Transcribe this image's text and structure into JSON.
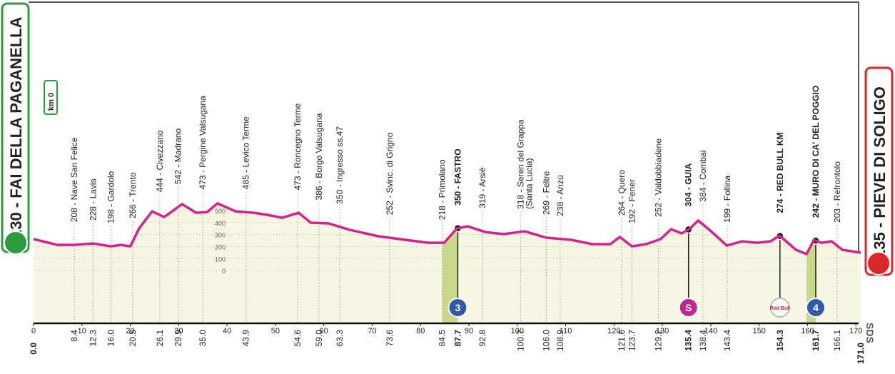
{
  "start": {
    "label": "230 - FAI DELLA PAGANELLA"
  },
  "finish": {
    "label": "135 - PIEVE DI SOLIGO"
  },
  "km_zero": "km 0",
  "logo": "SDS",
  "chart_data": {
    "type": "area",
    "color": "#d4248c",
    "fill": "#f6f7e2",
    "climb_color": "#c9d98c",
    "x": [
      0,
      4.9,
      8.4,
      12.3,
      16,
      18,
      20,
      21.8,
      24.5,
      27,
      30.7,
      33.6,
      35.9,
      38,
      41.8,
      45.5,
      48.4,
      51.4,
      54.8,
      57.3,
      61,
      65.4,
      71.3,
      75.7,
      81.6,
      84.9,
      87.5,
      89.7,
      93.4,
      97.1,
      101.5,
      106,
      111.1,
      115.6,
      119.2,
      121.2,
      123.7,
      126.6,
      129.6,
      131.8,
      134,
      135.5,
      137.4,
      139.9,
      143.3,
      146.5,
      149.5,
      152.4,
      154.2,
      157.6,
      159.8,
      161.3,
      162.8,
      165,
      167.2,
      171
    ],
    "values": [
      262,
      214,
      214,
      226,
      202,
      214,
      202,
      351,
      494,
      446,
      554,
      482,
      488,
      560,
      494,
      482,
      464,
      440,
      482,
      399,
      393,
      339,
      286,
      262,
      232,
      232,
      351,
      369,
      321,
      304,
      327,
      274,
      256,
      220,
      220,
      280,
      202,
      220,
      262,
      345,
      310,
      345,
      417,
      333,
      208,
      244,
      232,
      244,
      292,
      173,
      137,
      256,
      232,
      244,
      173,
      149
    ],
    "xlim": [
      0,
      171
    ],
    "xticks": [
      0,
      10,
      20,
      30,
      40,
      50,
      60,
      70,
      80,
      90,
      100,
      110,
      120,
      130,
      140,
      150,
      160,
      170
    ],
    "ylim": [
      -440,
      2000
    ],
    "yticks": [
      0,
      100,
      200,
      300,
      400,
      500
    ],
    "distance_start": {
      "value": 0,
      "label": "0.0"
    },
    "distance_finish": {
      "value": 171,
      "label": "171.0"
    },
    "climbs": [
      {
        "from": 84.5,
        "to": 87.7
      },
      {
        "from": 159.8,
        "to": 161.7
      }
    ],
    "waypoints": [
      {
        "km": 8.4,
        "label": "208 - Nave San Felice"
      },
      {
        "km": 12.3,
        "label": "228 - Lavis"
      },
      {
        "km": {
          "value": 16,
          "label": "16.0"
        },
        "label": "198 - Gardolo"
      },
      {
        "km": 20.5,
        "label": "266 - Trento"
      },
      {
        "km": 26.1,
        "label": "444 - Civezzano"
      },
      {
        "km": 29.9,
        "label": "542 - Madrano"
      },
      {
        "km": {
          "value": 35,
          "label": "35.0"
        },
        "label": "473 - Pergine Valsugana"
      },
      {
        "km": 43.9,
        "label": "485 - Levico Terme"
      },
      {
        "km": 54.6,
        "label": "473 - Roncegno Terme"
      },
      {
        "km": {
          "value": 59,
          "label": "59.0"
        },
        "label": "386 - Borgo Valsugana"
      },
      {
        "km": 63.3,
        "label": "350 - Ingresso ss.47"
      },
      {
        "km": 73.6,
        "label": "252 - Svinc. di Grigno"
      },
      {
        "km": 84.5,
        "label": "218 - Primolano"
      },
      {
        "km": 87.7,
        "label": "350 - FASTRO",
        "bold": true,
        "badge": {
          "text": "3",
          "color": "#2f5aa8"
        }
      },
      {
        "km": 92.8,
        "label": "319 - Arsiè"
      },
      {
        "km": 100.7,
        "label": "318 - Seren del Grappa",
        "label2": "(Santa Lucia)"
      },
      {
        "km": {
          "value": 106,
          "label": "106.0"
        },
        "label": "269 - Feltre"
      },
      {
        "km": 108.9,
        "label": "238 - Anzù"
      },
      {
        "km": 121.6,
        "label": "264 - Quero"
      },
      {
        "km": 123.7,
        "label": "192 - Fener"
      },
      {
        "km": 129.2,
        "label": "252 - Valdobbiadene"
      },
      {
        "km": 135.4,
        "label": "304 - GUIA",
        "bold": true,
        "badge": {
          "text": "S",
          "color": "#c2268f"
        }
      },
      {
        "km": 138.4,
        "label": "384 - Combai"
      },
      {
        "km": 143.4,
        "label": "199 - Follina"
      },
      {
        "km": 154.3,
        "label": "274 - RED BULL KM",
        "bold": true,
        "badge": {
          "text": "Red Bull",
          "color": "#ffffff"
        }
      },
      {
        "km": 161.7,
        "label": "242 - MURO DI CA' DEL POGGIO",
        "bold": true,
        "badge": {
          "text": "4",
          "color": "#2f5aa8"
        }
      },
      {
        "km": 166.1,
        "label": "203 - Refrontolo"
      }
    ]
  }
}
